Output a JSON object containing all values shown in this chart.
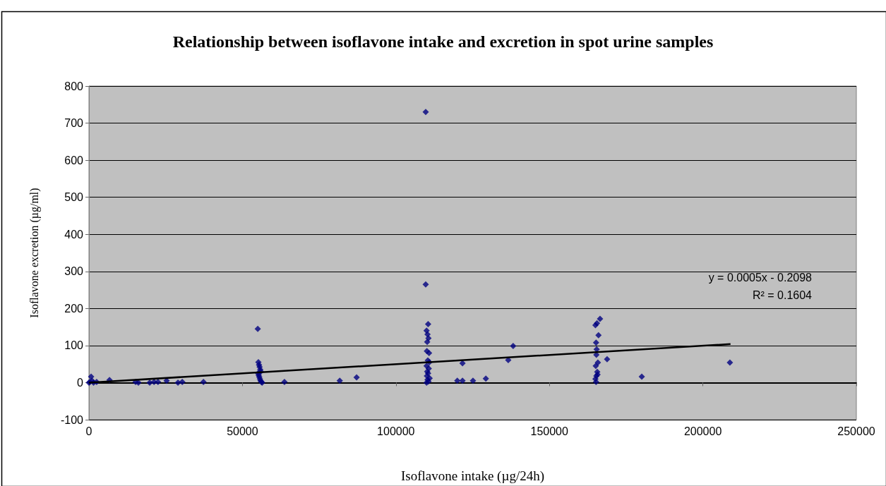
{
  "chart_data": {
    "type": "scatter",
    "title": "Relationship between isoflavone intake and excretion in spot urine samples",
    "xlabel": "Isoflavone intake (µg/24h)",
    "ylabel": "Isoflavone excretion (µg/ml)",
    "xlim": [
      0,
      250000
    ],
    "xticks": [
      0,
      50000,
      100000,
      150000,
      200000,
      250000
    ],
    "ylim": [
      -100,
      800
    ],
    "yticks": [
      -100,
      0,
      100,
      200,
      300,
      400,
      500,
      600,
      700,
      800
    ],
    "grid": "y",
    "marker": "diamond",
    "annotations": [
      "y = 0.0005x - 0.2098",
      "R² = 0.1604"
    ],
    "series": [
      {
        "color": "#000080",
        "x": [
          0,
          300,
          700,
          1000,
          1500,
          2500,
          6700,
          15200,
          16100,
          19800,
          21200,
          22500,
          25300,
          29000,
          30400,
          37300,
          55000,
          55200,
          55400,
          55600,
          55800,
          56000,
          55100,
          55300,
          55500,
          55700,
          55900,
          56200,
          56400,
          63700,
          81700,
          87200,
          109700,
          109700,
          110500,
          110000,
          110300,
          110600,
          110200,
          110100,
          110800,
          110400,
          110900,
          110000,
          110700,
          110200,
          110500,
          110100,
          111000,
          110300,
          110600,
          110000,
          120000,
          121700,
          121700,
          125100,
          129300,
          136600,
          138200,
          165000,
          165500,
          166000,
          166500,
          165200,
          165400,
          165300,
          165800,
          165100,
          165600,
          165300,
          165700,
          165200,
          165000,
          168800,
          180100,
          208800
        ],
        "values": [
          0,
          2,
          16,
          5,
          0,
          2,
          7,
          2,
          0,
          0,
          2,
          2,
          5,
          0,
          2,
          2,
          145,
          55,
          48,
          42,
          35,
          30,
          25,
          20,
          15,
          10,
          5,
          2,
          0,
          2,
          5,
          14,
          730,
          265,
          158,
          140,
          130,
          120,
          110,
          85,
          80,
          60,
          55,
          45,
          38,
          30,
          25,
          18,
          12,
          8,
          3,
          0,
          5,
          52,
          5,
          5,
          11,
          61,
          99,
          155,
          160,
          128,
          172,
          108,
          90,
          75,
          54,
          45,
          29,
          18,
          22,
          2,
          10,
          63,
          16,
          54
        ]
      },
      {
        "type": "line",
        "color": "#000000",
        "marker": "none",
        "x": [
          0,
          209000
        ],
        "values": [
          0,
          104
        ]
      }
    ]
  }
}
